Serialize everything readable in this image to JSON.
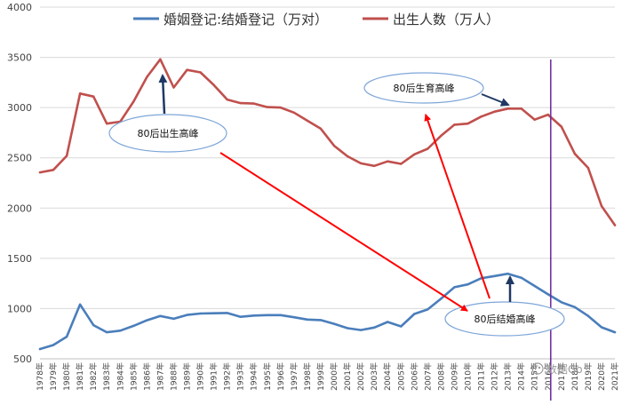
{
  "chart_data": {
    "type": "line",
    "x": [
      "1978年",
      "1979年",
      "1980年",
      "1981年",
      "1982年",
      "1983年",
      "1984年",
      "1985年",
      "1986年",
      "1987年",
      "1988年",
      "1989年",
      "1990年",
      "1991年",
      "1992年",
      "1993年",
      "1994年",
      "1995年",
      "1996年",
      "1997年",
      "1998年",
      "1999年",
      "2000年",
      "2001年",
      "2002年",
      "2003年",
      "2004年",
      "2005年",
      "2006年",
      "2007年",
      "2008年",
      "2009年",
      "2010年",
      "2011年",
      "2012年",
      "2013年",
      "2014年",
      "2015年",
      "2016年",
      "2017年",
      "2018年",
      "2019年",
      "2020年",
      "2021年"
    ],
    "series": [
      {
        "name": "婚姻登记:结婚登记（万对）",
        "color": "#4a7ebb",
        "values": [
          597,
          637,
          720,
          1041,
          835,
          764,
          780,
          828,
          884,
          926,
          899,
          937,
          951,
          953,
          956,
          918,
          930,
          935,
          935,
          914,
          891,
          885,
          848,
          805,
          786,
          811,
          867,
          823,
          946,
          991,
          1099,
          1212,
          1241,
          1302,
          1324,
          1347,
          1307,
          1225,
          1142,
          1063,
          1014,
          927,
          814,
          764
        ]
      },
      {
        "name": "出生人数（万人）",
        "color": "#c0504d",
        "values": [
          2355,
          2380,
          2520,
          3140,
          3110,
          2840,
          2860,
          3060,
          3305,
          3480,
          3200,
          3375,
          3350,
          3225,
          3080,
          3045,
          3040,
          3005,
          3000,
          2950,
          2870,
          2790,
          2620,
          2515,
          2445,
          2420,
          2465,
          2440,
          2535,
          2590,
          2720,
          2830,
          2840,
          2910,
          2960,
          2990,
          2990,
          2880,
          2930,
          2810,
          2540,
          2400,
          2020,
          1830
        ]
      }
    ],
    "yticks": [
      500,
      1000,
      1500,
      2000,
      2500,
      3000,
      3500,
      4000
    ],
    "ylim": [
      500,
      4000
    ],
    "grid": true,
    "legend_position": "top",
    "annotations": [
      {
        "text": "80后出生高峰",
        "color": "#1f3864"
      },
      {
        "text": "80后生育高峰",
        "color": "#1f3864"
      },
      {
        "text": "80后结婚高峰",
        "color": "#1f3864"
      }
    ],
    "arrow_color": "#ff0000",
    "vertical_line_color": "#7030a0"
  },
  "watermark": "数据Go"
}
